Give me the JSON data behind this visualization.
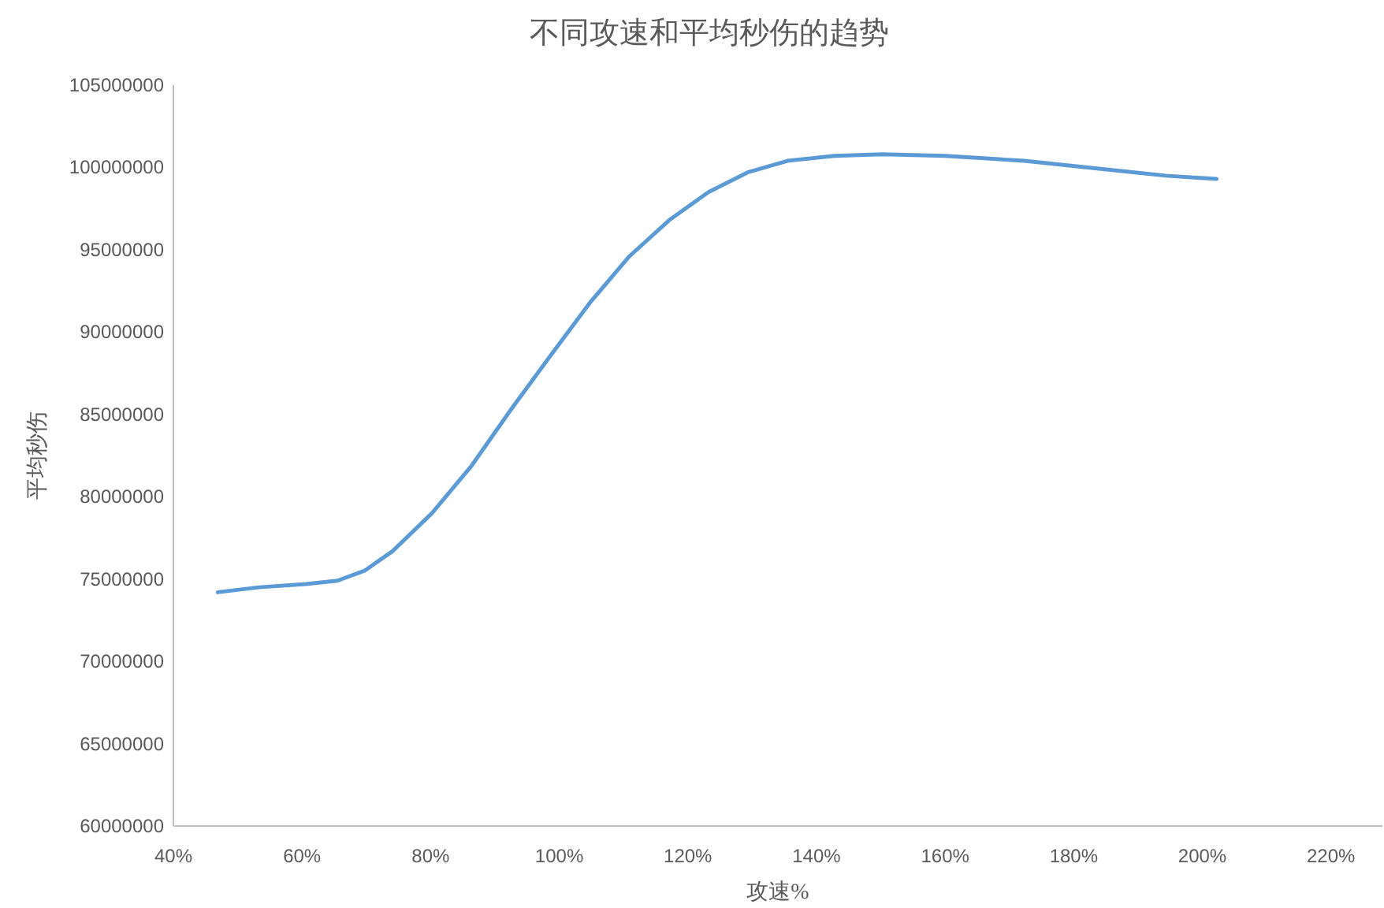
{
  "chart_data": {
    "type": "line",
    "title": "不同攻速和平均秒伤的趋势",
    "xlabel": "攻速%",
    "ylabel": "平均秒伤",
    "x": [
      46.9,
      53.3,
      60.6,
      65.5,
      69.7,
      74.1,
      80.2,
      86.4,
      92.5,
      98.7,
      104.8,
      110.9,
      117.1,
      123.2,
      129.3,
      135.5,
      142.8,
      150.2,
      160,
      172.3,
      184.5,
      194.3,
      202.2
    ],
    "series": [
      {
        "color": "#5b9bd5",
        "values": [
          74200000,
          74500000,
          74700000,
          74900000,
          75500000,
          76700000,
          79000000,
          81900000,
          85300000,
          88600000,
          91800000,
          94600000,
          96800000,
          98500000,
          99700000,
          100400000,
          100700000,
          100800000,
          100700000,
          100400000,
          99900000,
          99500000,
          99300000
        ]
      }
    ],
    "xlim": [
      40,
      228
    ],
    "xticks": [
      {
        "value": 40,
        "label": "40%"
      },
      {
        "value": 60,
        "label": "60%"
      },
      {
        "value": 80,
        "label": "80%"
      },
      {
        "value": 100,
        "label": "100%"
      },
      {
        "value": 120,
        "label": "120%"
      },
      {
        "value": 140,
        "label": "140%"
      },
      {
        "value": 160,
        "label": "160%"
      },
      {
        "value": 180,
        "label": "180%"
      },
      {
        "value": 200,
        "label": "200%"
      },
      {
        "value": 220,
        "label": "220%"
      }
    ],
    "ylim": [
      60000000,
      105000000
    ],
    "yticks": [
      60000000,
      65000000,
      70000000,
      75000000,
      80000000,
      85000000,
      90000000,
      95000000,
      100000000,
      105000000
    ],
    "grid": false,
    "marker": "none",
    "line_style": "solid"
  }
}
